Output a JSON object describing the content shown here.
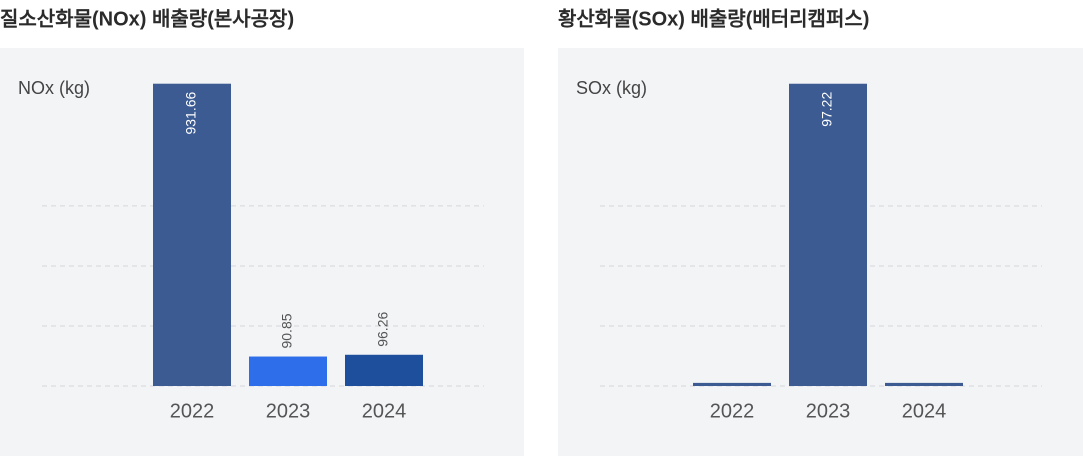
{
  "chart_data": [
    {
      "type": "bar",
      "title": "질소산화물(NOx) 배출량(본사공장)",
      "y_label": "NOx (kg)",
      "categories": [
        "2022",
        "2023",
        "2024"
      ],
      "values": [
        931.66,
        90.85,
        96.26
      ],
      "colors": [
        "#3b5b92",
        "#2f6eea",
        "#1d4f9c"
      ],
      "ylim": [
        0,
        940
      ],
      "yticks": [
        0,
        185,
        370,
        555
      ],
      "grid": true
    },
    {
      "type": "bar",
      "title": "황산화물(SOx) 배출량(배터리캠퍼스)",
      "y_label": "SOx (kg)",
      "categories": [
        "2022",
        "2023",
        "2024"
      ],
      "values": [
        1,
        97.22,
        1
      ],
      "value_labels": [
        null,
        "97.22",
        null
      ],
      "colors": [
        "#3b5b92",
        "#3b5b92",
        "#3b5b92"
      ],
      "ylim": [
        0,
        98.1
      ],
      "yticks": [
        0,
        19.3,
        38.6,
        57.9
      ],
      "grid": true
    }
  ]
}
